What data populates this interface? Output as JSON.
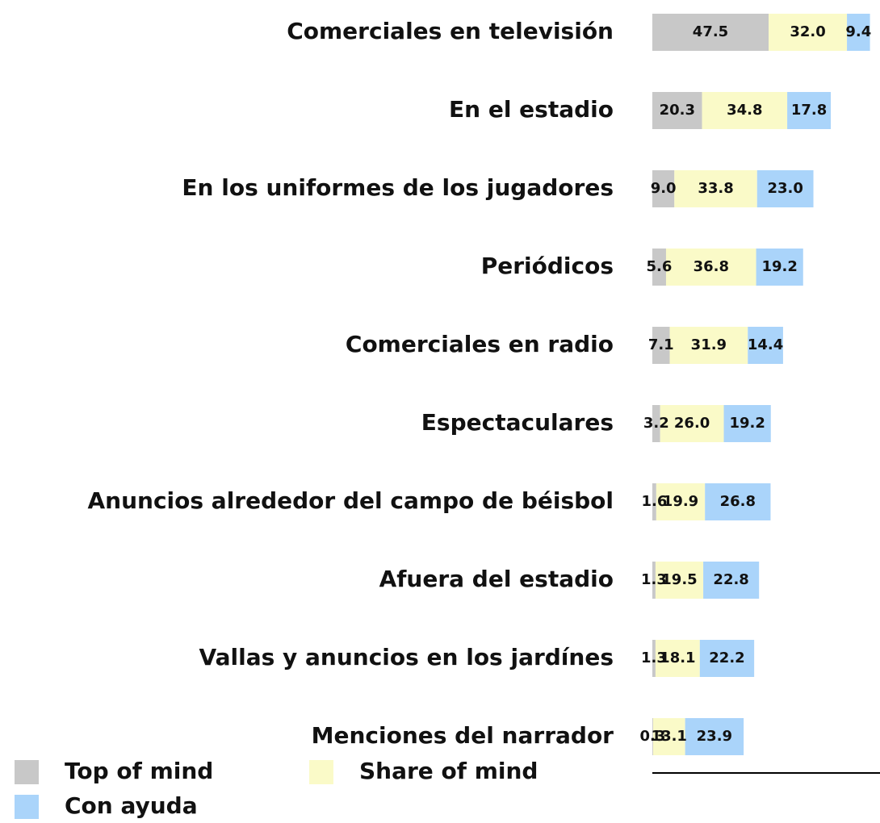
{
  "chart_data": {
    "type": "stacked_barh",
    "categories": [
      "Comerciales en televisión",
      "En el estadio",
      "En los uniformes de los jugadores",
      "Periódicos",
      "Comerciales en radio",
      "Espectaculares",
      "Anuncios alrededor del campo de béisbol",
      "Afuera del estadio",
      "Vallas y anuncios en los jardínes",
      "Menciones del narrador"
    ],
    "series": [
      {
        "name": "Top of mind",
        "color": "#c8c8c8",
        "values": [
          47.5,
          20.3,
          9.0,
          5.6,
          7.1,
          3.2,
          1.6,
          1.3,
          1.3,
          0.3
        ],
        "value_labels": [
          "47.5",
          "20.3",
          "9.0",
          "5.6",
          "7.1",
          "3.2",
          "1.6",
          "1.3",
          "1.3",
          "0.3"
        ]
      },
      {
        "name": "Share of mind",
        "color": "#fafac8",
        "values": [
          32.0,
          34.8,
          33.8,
          36.8,
          31.9,
          26.0,
          19.9,
          19.5,
          18.1,
          13.1
        ],
        "value_labels": [
          "32.0",
          "34.8",
          "33.8",
          "36.8",
          "31.9",
          "26.0",
          "19.9",
          "19.5",
          "18.1",
          "13.1"
        ]
      },
      {
        "name": "Con ayuda",
        "color": "#aad4fa",
        "values": [
          9.4,
          17.8,
          23.0,
          19.2,
          14.4,
          19.2,
          26.8,
          22.8,
          22.2,
          23.9
        ],
        "value_labels": [
          "9.4",
          "17.8",
          "23.0",
          "19.2",
          "14.4",
          "19.2",
          "26.8",
          "22.8",
          "22.2",
          "23.9"
        ]
      }
    ],
    "xlim": [
      0,
      93
    ]
  }
}
